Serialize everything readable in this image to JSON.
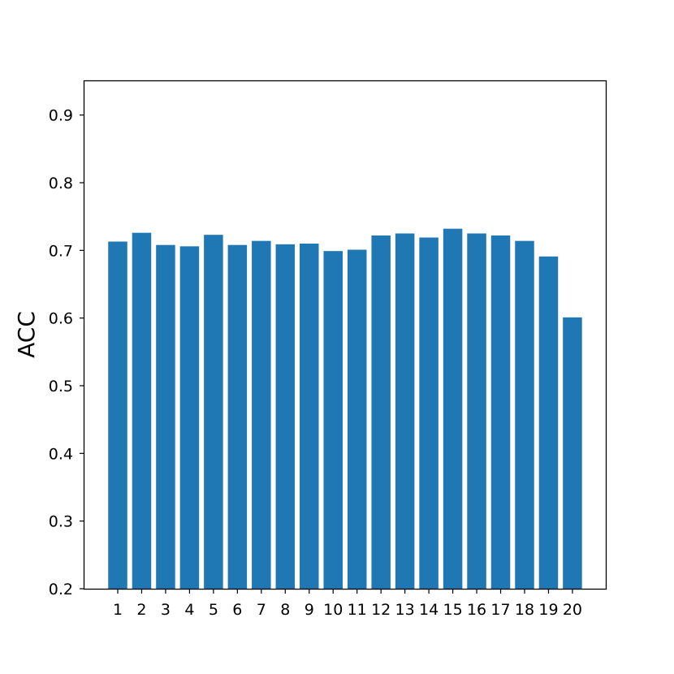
{
  "chart_data": {
    "type": "bar",
    "categories": [
      "1",
      "2",
      "3",
      "4",
      "5",
      "6",
      "7",
      "8",
      "9",
      "10",
      "11",
      "12",
      "13",
      "14",
      "15",
      "16",
      "17",
      "18",
      "19",
      "20"
    ],
    "values": [
      0.713,
      0.726,
      0.708,
      0.706,
      0.723,
      0.708,
      0.714,
      0.709,
      0.71,
      0.699,
      0.701,
      0.722,
      0.725,
      0.719,
      0.732,
      0.725,
      0.722,
      0.714,
      0.691,
      0.601
    ],
    "title": "",
    "xlabel": "",
    "ylabel": "ACC",
    "ylim": [
      0.2,
      0.95
    ],
    "yticks": [
      0.2,
      0.3,
      0.4,
      0.5,
      0.6,
      0.7,
      0.8,
      0.9
    ],
    "ytick_labels": [
      "0.2",
      "0.3",
      "0.4",
      "0.5",
      "0.6",
      "0.7",
      "0.8",
      "0.9"
    ],
    "grid": false,
    "legend": "none",
    "bar_color": "#1f77b4"
  }
}
